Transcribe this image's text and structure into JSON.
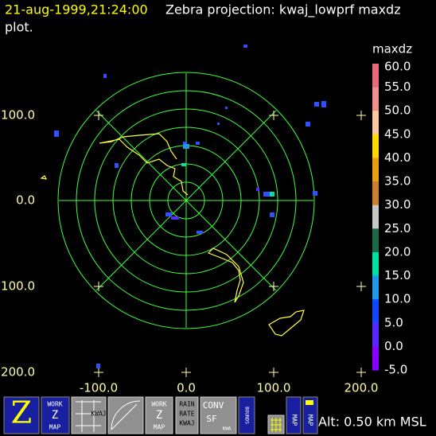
{
  "header": {
    "timestamp": "21-aug-1999,21:24:00",
    "title": "Zebra projection: kwaj_lowprf maxdz",
    "title_cont": "plot."
  },
  "plot": {
    "y_labels": [
      "100.0",
      "0.0",
      "100.0",
      "200.0"
    ],
    "x_labels": [
      "-100.0",
      "0.0",
      "100.0",
      "200.0"
    ]
  },
  "colorbar": {
    "field": "maxdz",
    "labels": [
      "60.0",
      "55.0",
      "50.0",
      "45.0",
      "40.0",
      "35.0",
      "30.0",
      "25.0",
      "20.0",
      "15.0",
      "10.0",
      "5.0",
      "0.0",
      "-5.0"
    ],
    "colors": [
      "#e86878",
      "#f09090",
      "#f8c8a0",
      "#ffd800",
      "#e8a010",
      "#c88030",
      "#c8c8c8",
      "#1a6a4a",
      "#00e0a0",
      "#2098e8",
      "#1048ff",
      "#5828ff",
      "#8800ff"
    ]
  },
  "toolbar": {
    "buttons": [
      {
        "lines": [
          "WORK",
          "Z",
          "MAP"
        ]
      },
      {
        "lines": [
          "KWAJ"
        ]
      },
      {
        "lines": [
          "WORK",
          "Z",
          "MAP"
        ]
      },
      {
        "lines": [
          "RAIN",
          "RATE",
          "KWAJ"
        ]
      },
      {
        "lines": [
          "CONV",
          "SF",
          "KWA"
        ]
      },
      {
        "lines": [
          "BOUNDS"
        ]
      },
      {
        "lines": [
          "MAP"
        ]
      },
      {
        "lines": [
          "MAP"
        ]
      }
    ]
  },
  "status": "Alt: 0.50 km MSL"
}
